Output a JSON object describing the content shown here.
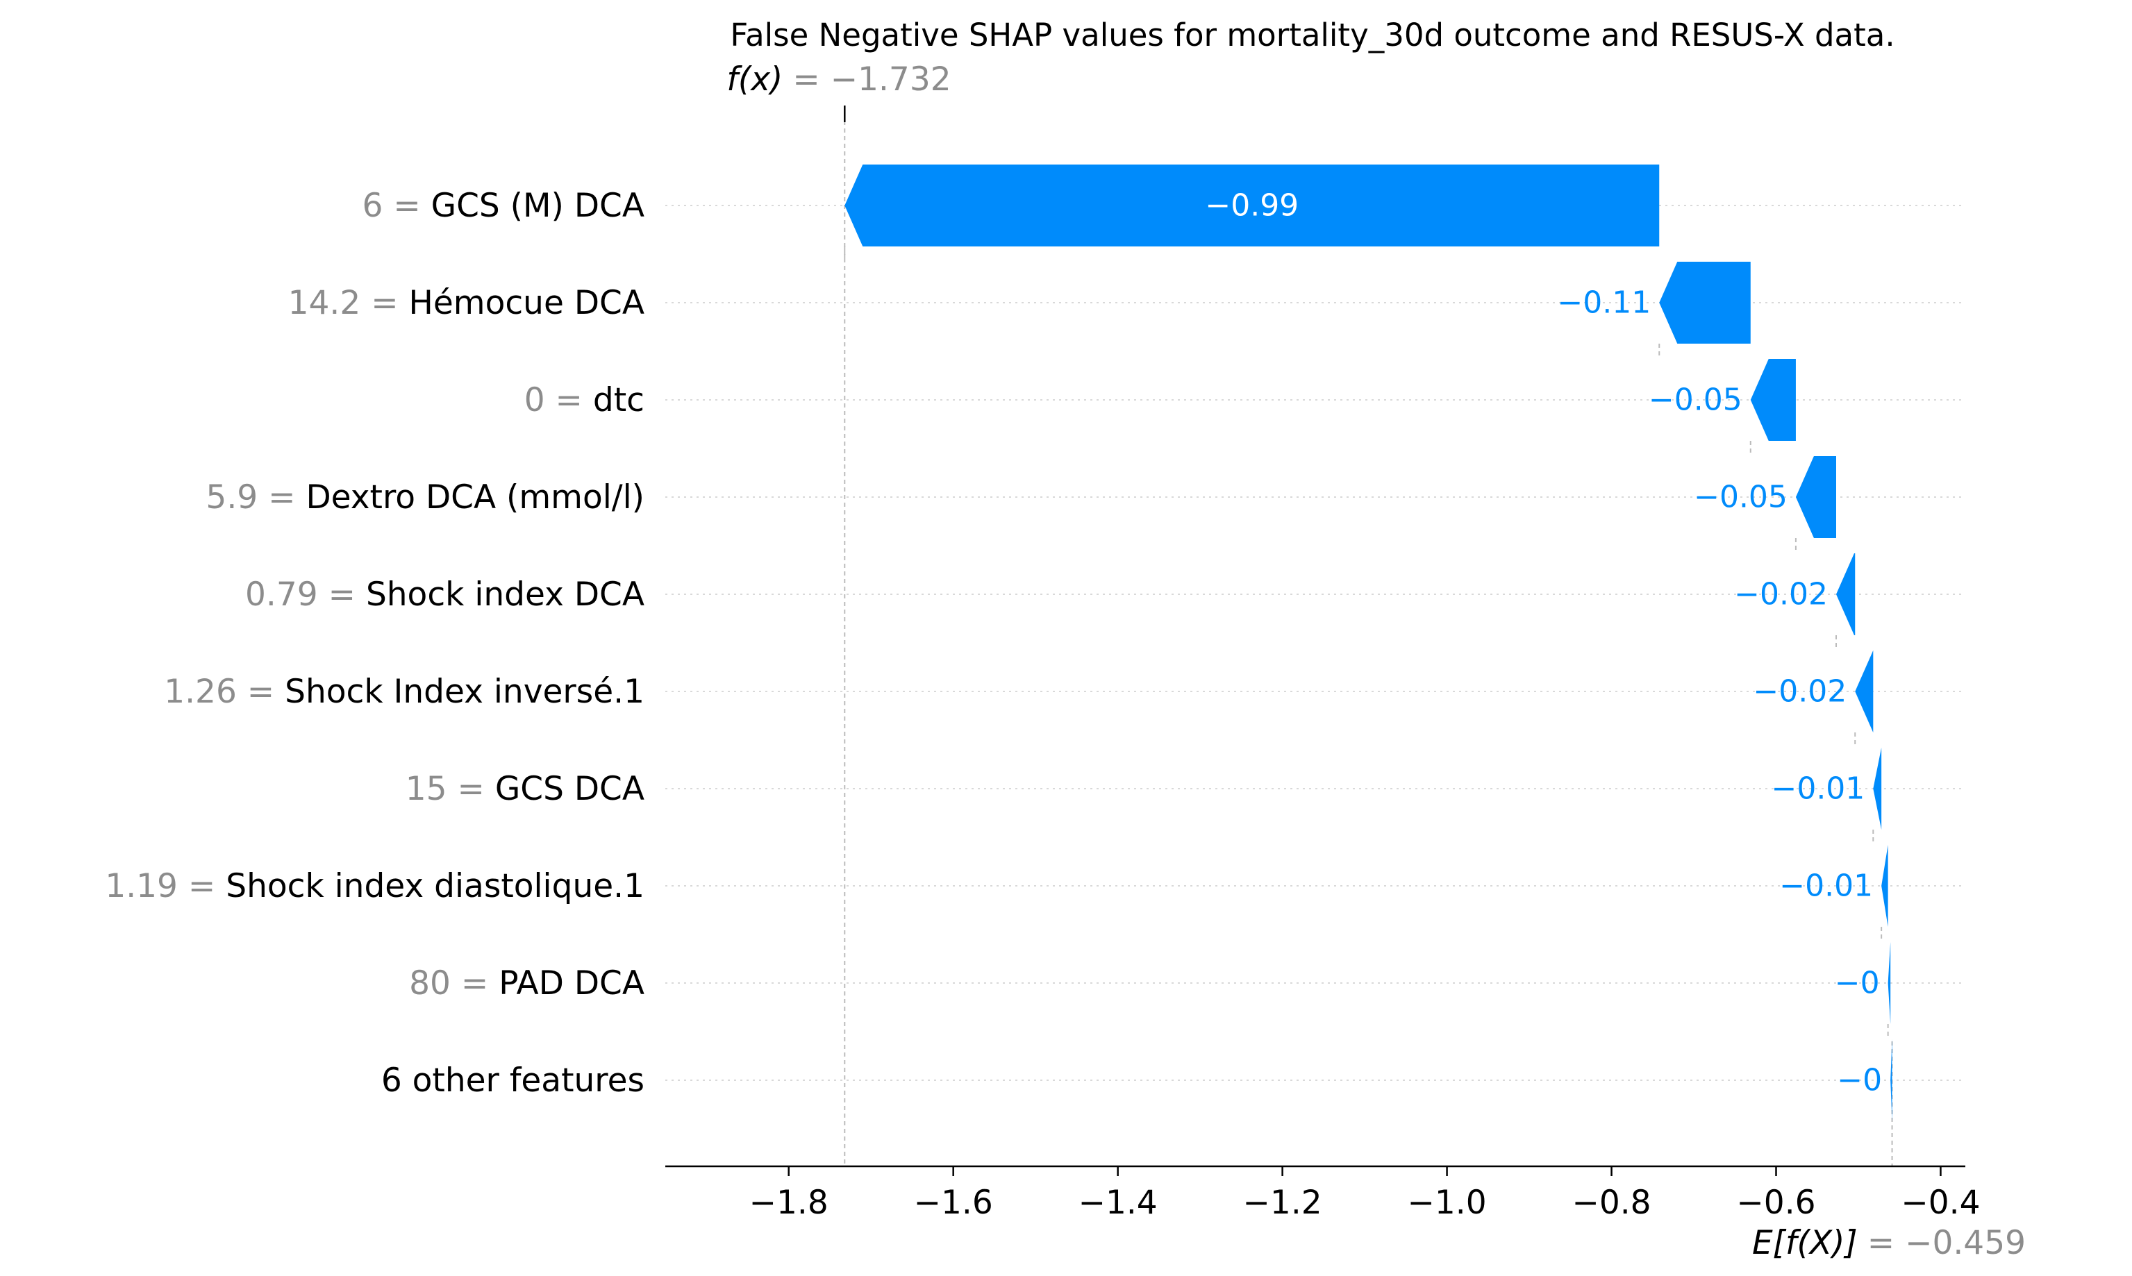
{
  "chart_data": {
    "type": "bar",
    "title": "False Negative SHAP values for mortality_30d outcome and RESUS-X data.",
    "fx_label": "f(x)",
    "fx_value_text": "= −1.732",
    "fx_value": -1.732,
    "ex_label": "E[f(X)]",
    "ex_value_text": "= −0.459",
    "ex_value": -0.459,
    "xlim": [
      -1.95,
      -0.37
    ],
    "xticks": [
      -1.8,
      -1.6,
      -1.4,
      -1.2,
      -1.0,
      -0.8,
      -0.6,
      -0.4
    ],
    "xtick_labels": [
      "−1.8",
      "−1.6",
      "−1.4",
      "−1.2",
      "−1.0",
      "−0.8",
      "−0.6",
      "−0.4"
    ],
    "bar_color": "#008bfb",
    "grid": "dotted horizontal lines per feature",
    "features": [
      {
        "value": "6",
        "name": "GCS (M) DCA",
        "shap": -0.99,
        "label": "−0.99",
        "start": -0.742,
        "end": -1.732
      },
      {
        "value": "14.2",
        "name": "Hémocue DCA",
        "shap": -0.11,
        "label": "−0.11",
        "start": -0.631,
        "end": -0.742
      },
      {
        "value": "0",
        "name": "dtc",
        "shap": -0.05,
        "label": "−0.05",
        "start": -0.576,
        "end": -0.631
      },
      {
        "value": "5.9",
        "name": "Dextro DCA (mmol/l)",
        "shap": -0.05,
        "label": "−0.05",
        "start": -0.527,
        "end": -0.576
      },
      {
        "value": "0.79",
        "name": "Shock index DCA",
        "shap": -0.02,
        "label": "−0.02",
        "start": -0.504,
        "end": -0.527
      },
      {
        "value": "1.26",
        "name": "Shock Index inversé.1",
        "shap": -0.02,
        "label": "−0.02",
        "start": -0.482,
        "end": -0.504
      },
      {
        "value": "15",
        "name": "GCS DCA",
        "shap": -0.01,
        "label": "−0.01",
        "start": -0.472,
        "end": -0.482
      },
      {
        "value": "1.19",
        "name": "Shock index diastolique.1",
        "shap": -0.01,
        "label": "−0.01",
        "start": -0.464,
        "end": -0.472
      },
      {
        "value": "80",
        "name": "PAD DCA",
        "shap": 0.0,
        "label": "−0",
        "start": -0.461,
        "end": -0.464
      },
      {
        "value": "",
        "name": "6 other features",
        "shap": 0.0,
        "label": "−0",
        "start": -0.459,
        "end": -0.461
      }
    ]
  }
}
